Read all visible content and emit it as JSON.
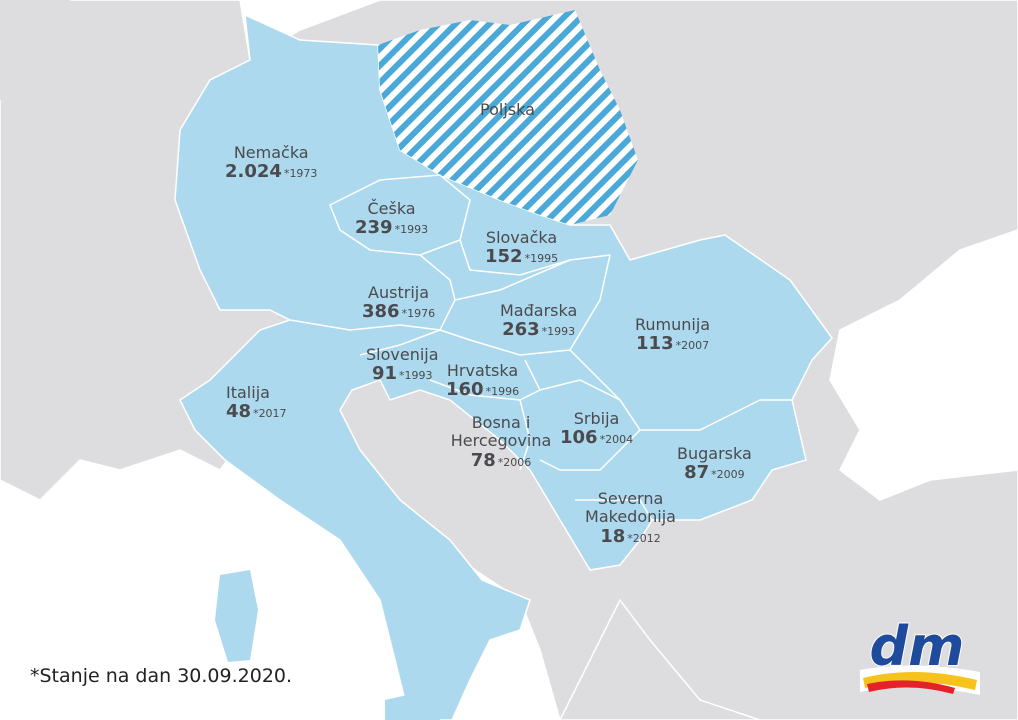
{
  "colors": {
    "sea": "#ffffff",
    "land": "#dddde0",
    "dm_country": "#acd9ed",
    "hatch": "#4aa9d8",
    "text": "#4a4a4f"
  },
  "countries": [
    {
      "name": "Nemačka",
      "stores": "2.024",
      "year": "*1973"
    },
    {
      "name": "Češka",
      "stores": "239",
      "year": "*1993"
    },
    {
      "name": "Slovačka",
      "stores": "152",
      "year": "*1995"
    },
    {
      "name": "Austrija",
      "stores": "386",
      "year": "*1976"
    },
    {
      "name": "Mađarska",
      "stores": "263",
      "year": "*1993"
    },
    {
      "name": "Rumunija",
      "stores": "113",
      "year": "*2007"
    },
    {
      "name": "Slovenija",
      "stores": "91",
      "year": "*1993"
    },
    {
      "name": "Hrvatska",
      "stores": "160",
      "year": "*1996"
    },
    {
      "name": "Italija",
      "stores": "48",
      "year": "*2017"
    },
    {
      "name": "Bosna i Hercegovina",
      "stores": "78",
      "year": "*2006"
    },
    {
      "name": "Srbija",
      "stores": "106",
      "year": "*2004"
    },
    {
      "name": "Bugarska",
      "stores": "87",
      "year": "*2009"
    },
    {
      "name": "Severna Makedonija",
      "stores": "18",
      "year": "*2012"
    }
  ],
  "poland": {
    "name": "Poljska",
    "pattern": "hatched"
  },
  "footnote": "*Stanje na dan 30.09.2020.",
  "logo": {
    "text": "dm"
  }
}
